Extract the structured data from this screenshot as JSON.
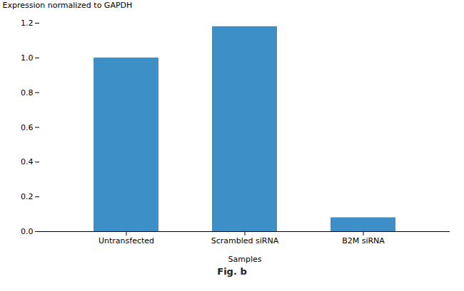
{
  "chart_data": {
    "type": "bar",
    "categories": [
      "Untransfected",
      "Scrambled siRNA",
      "B2M siRNA"
    ],
    "values": [
      1.0,
      1.18,
      0.08
    ],
    "color": "#3d8fc8",
    "xlabel": "Samples",
    "ylabel": "Expression normalized to GAPDH",
    "caption": "Fig. b",
    "ylim": [
      0,
      1.2
    ],
    "yticks": [
      {
        "value": 0,
        "label": "0.0"
      },
      0.2,
      0.4,
      0.6,
      0.8,
      {
        "value": 1,
        "label": "1.0"
      },
      1.2
    ],
    "grid": false
  }
}
